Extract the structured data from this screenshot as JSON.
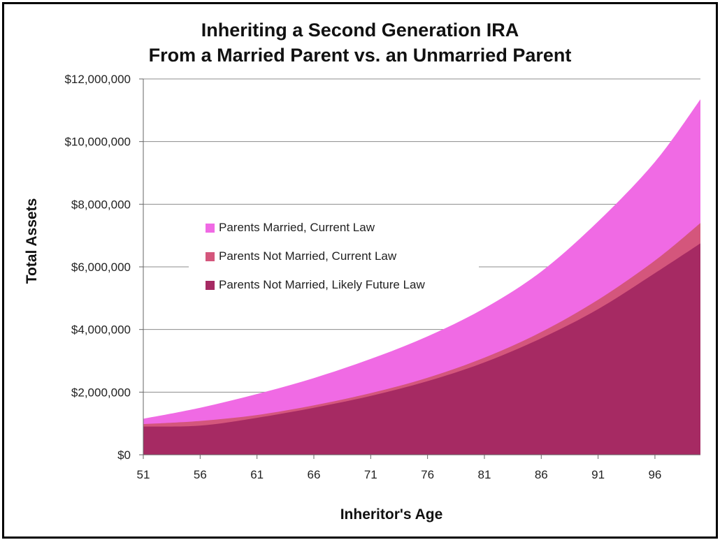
{
  "chart_data": {
    "type": "area",
    "stacked": false,
    "title": "Inheriting a Second Generation IRA",
    "subtitle": "From a Married Parent vs. an Unmarried Parent",
    "xlabel": "Inheritor's Age",
    "ylabel": "Total Assets",
    "xlim": [
      51,
      100
    ],
    "ylim": [
      0,
      12000000
    ],
    "x_ticks": [
      "51",
      "56",
      "61",
      "66",
      "71",
      "76",
      "81",
      "86",
      "91",
      "96"
    ],
    "y_ticks": [
      "$0",
      "$2,000,000",
      "$4,000,000",
      "$6,000,000",
      "$8,000,000",
      "$10,000,000",
      "$12,000,000"
    ],
    "y_tick_values": [
      0,
      2000000,
      4000000,
      6000000,
      8000000,
      10000000,
      12000000
    ],
    "grid": "horizontal",
    "legend_position": "center-left",
    "x": [
      51,
      56,
      61,
      66,
      71,
      76,
      81,
      86,
      91,
      96,
      100
    ],
    "series": [
      {
        "name": "Parents Married, Current Law",
        "color": "#f06ae4",
        "values": [
          1150000,
          1500000,
          1940000,
          2450000,
          3060000,
          3780000,
          4680000,
          5850000,
          7450000,
          9350000,
          11350000
        ]
      },
      {
        "name": "Parents Not Married, Current Law",
        "color": "#d4567c",
        "values": [
          980000,
          1080000,
          1270000,
          1580000,
          1970000,
          2460000,
          3100000,
          3920000,
          4950000,
          6200000,
          7400000
        ]
      },
      {
        "name": "Parents Not Married, Likely Future Law",
        "color": "#a62a63",
        "values": [
          900000,
          930000,
          1180000,
          1500000,
          1880000,
          2350000,
          2950000,
          3720000,
          4650000,
          5800000,
          6750000
        ]
      }
    ]
  }
}
